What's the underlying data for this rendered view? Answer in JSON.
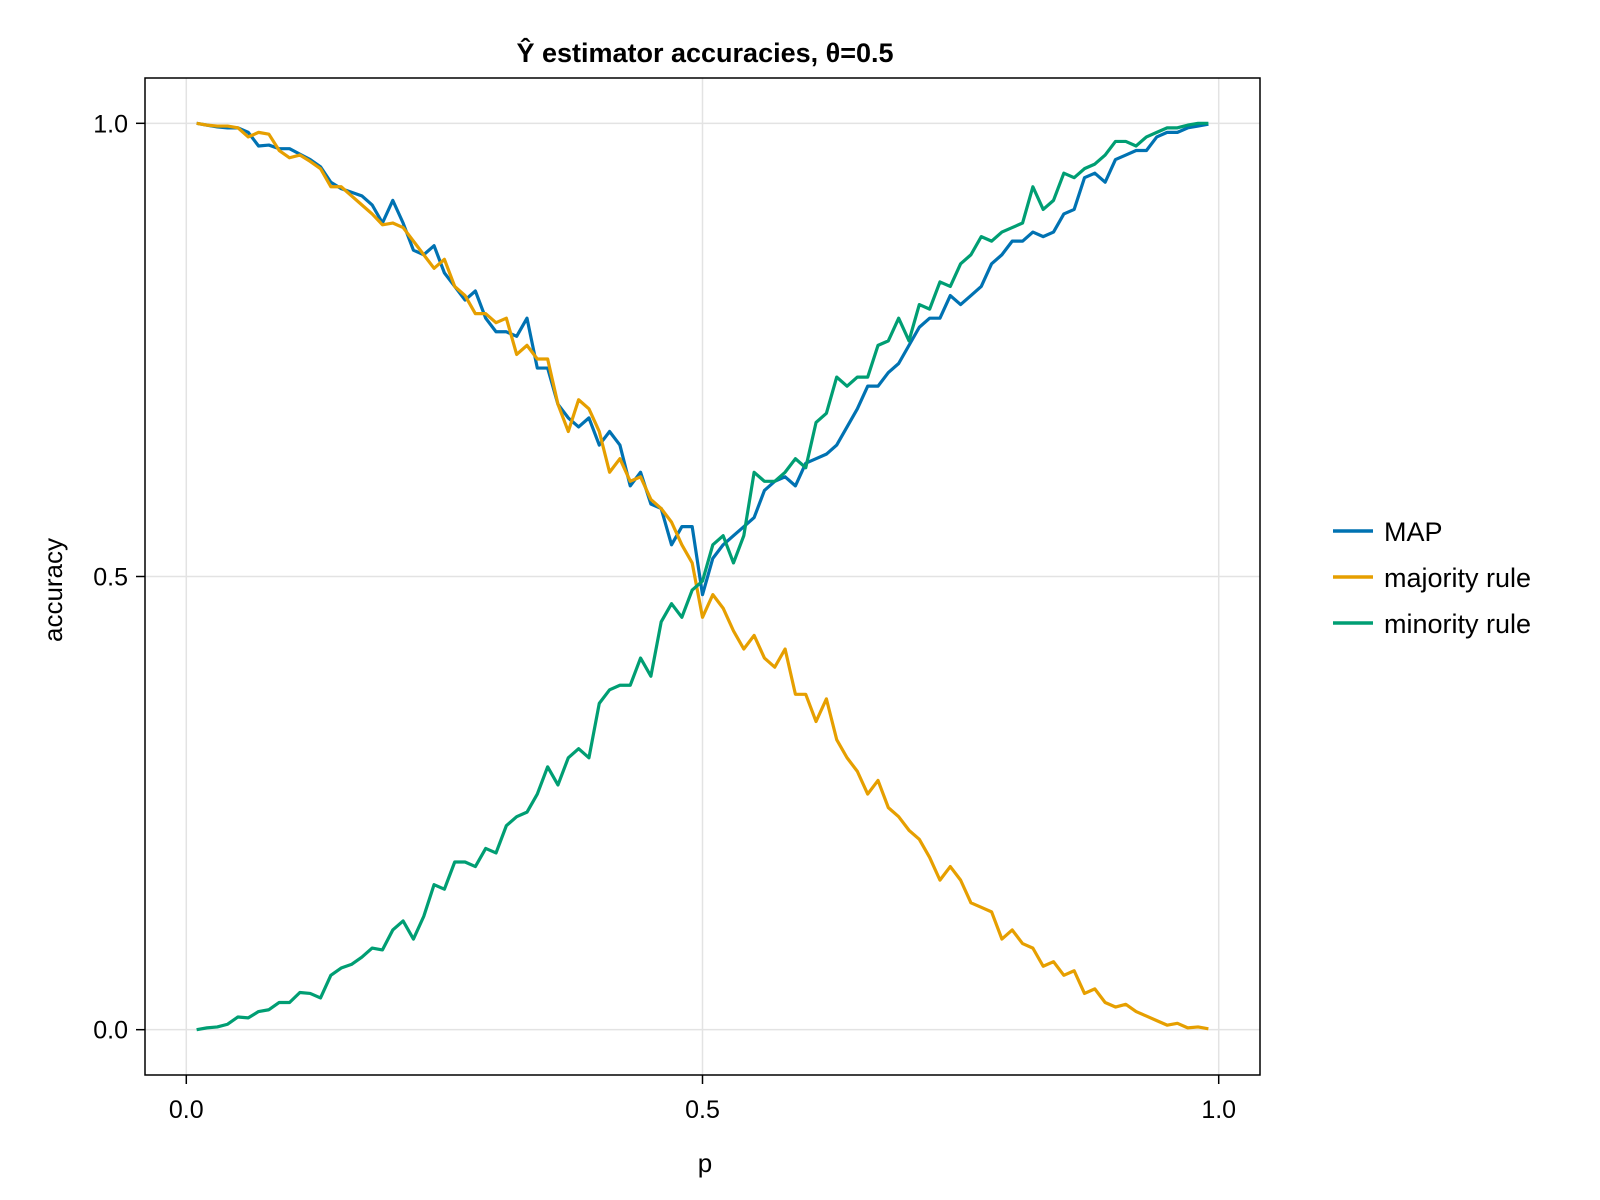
{
  "chart_data": {
    "type": "line",
    "title": "Ŷ estimator accuracies, θ=0.5",
    "xlabel": "p",
    "ylabel": "accuracy",
    "xlim": [
      -0.04,
      1.04
    ],
    "ylim": [
      -0.05,
      1.05
    ],
    "xticks": [
      0.0,
      0.5,
      1.0
    ],
    "xtick_labels": [
      "0.0",
      "0.5",
      "1.0"
    ],
    "yticks": [
      0.0,
      0.5,
      1.0
    ],
    "ytick_labels": [
      "0.0",
      "0.5",
      "1.0"
    ],
    "grid": true,
    "legend_position": "right",
    "x": [
      0.01,
      0.02,
      0.03,
      0.04,
      0.05,
      0.06,
      0.07,
      0.08,
      0.09,
      0.1,
      0.11,
      0.12,
      0.13,
      0.14,
      0.15,
      0.16,
      0.17,
      0.18,
      0.19,
      0.2,
      0.21,
      0.22,
      0.23,
      0.24,
      0.25,
      0.26,
      0.27,
      0.28,
      0.29,
      0.3,
      0.31,
      0.32,
      0.33,
      0.34,
      0.35,
      0.36,
      0.37,
      0.38,
      0.39,
      0.4,
      0.41,
      0.42,
      0.43,
      0.44,
      0.45,
      0.46,
      0.47,
      0.48,
      0.49,
      0.5,
      0.51,
      0.52,
      0.53,
      0.54,
      0.55,
      0.56,
      0.57,
      0.58,
      0.59,
      0.6,
      0.61,
      0.62,
      0.63,
      0.64,
      0.65,
      0.66,
      0.67,
      0.68,
      0.69,
      0.7,
      0.71,
      0.72,
      0.73,
      0.74,
      0.75,
      0.76,
      0.77,
      0.78,
      0.79,
      0.8,
      0.81,
      0.82,
      0.83,
      0.84,
      0.85,
      0.86,
      0.87,
      0.88,
      0.89,
      0.9,
      0.91,
      0.92,
      0.93,
      0.94,
      0.95,
      0.96,
      0.97,
      0.98,
      0.99
    ],
    "series": [
      {
        "name": "MAP",
        "color": "#0072b2",
        "values": [
          1.0,
          0.998,
          0.996,
          0.995,
          0.995,
          0.99,
          0.975,
          0.976,
          0.972,
          0.972,
          0.966,
          0.96,
          0.952,
          0.935,
          0.928,
          0.924,
          0.92,
          0.91,
          0.89,
          0.915,
          0.89,
          0.86,
          0.855,
          0.865,
          0.835,
          0.82,
          0.805,
          0.815,
          0.785,
          0.77,
          0.77,
          0.765,
          0.785,
          0.73,
          0.73,
          0.69,
          0.675,
          0.665,
          0.675,
          0.645,
          0.66,
          0.645,
          0.6,
          0.615,
          0.58,
          0.575,
          0.535,
          0.555,
          0.555,
          0.48,
          0.52,
          0.535,
          0.545,
          0.555,
          0.565,
          0.595,
          0.605,
          0.61,
          0.6,
          0.625,
          0.63,
          0.635,
          0.645,
          0.665,
          0.685,
          0.71,
          0.71,
          0.725,
          0.735,
          0.755,
          0.775,
          0.785,
          0.785,
          0.81,
          0.8,
          0.81,
          0.82,
          0.845,
          0.855,
          0.87,
          0.87,
          0.88,
          0.875,
          0.88,
          0.9,
          0.905,
          0.94,
          0.945,
          0.935,
          0.96,
          0.965,
          0.97,
          0.97,
          0.985,
          0.99,
          0.99,
          0.995,
          0.997,
          0.999
        ]
      },
      {
        "name": "majority rule",
        "color": "#e69f00",
        "values": [
          1.0,
          0.998,
          0.997,
          0.997,
          0.995,
          0.985,
          0.99,
          0.988,
          0.97,
          0.962,
          0.965,
          0.958,
          0.95,
          0.93,
          0.93,
          0.92,
          0.91,
          0.9,
          0.888,
          0.89,
          0.885,
          0.87,
          0.855,
          0.84,
          0.85,
          0.82,
          0.81,
          0.79,
          0.79,
          0.78,
          0.785,
          0.745,
          0.755,
          0.74,
          0.74,
          0.69,
          0.66,
          0.695,
          0.685,
          0.66,
          0.615,
          0.63,
          0.605,
          0.61,
          0.585,
          0.575,
          0.56,
          0.535,
          0.515,
          0.455,
          0.48,
          0.465,
          0.44,
          0.42,
          0.435,
          0.41,
          0.4,
          0.42,
          0.37,
          0.37,
          0.34,
          0.365,
          0.32,
          0.3,
          0.285,
          0.26,
          0.275,
          0.245,
          0.235,
          0.22,
          0.21,
          0.19,
          0.165,
          0.18,
          0.165,
          0.14,
          0.135,
          0.13,
          0.1,
          0.11,
          0.095,
          0.09,
          0.07,
          0.075,
          0.06,
          0.065,
          0.04,
          0.045,
          0.03,
          0.025,
          0.028,
          0.02,
          0.015,
          0.01,
          0.005,
          0.007,
          0.002,
          0.003,
          0.001
        ]
      },
      {
        "name": "minority rule",
        "color": "#009e73",
        "values": [
          0.0,
          0.002,
          0.003,
          0.006,
          0.014,
          0.013,
          0.02,
          0.022,
          0.03,
          0.03,
          0.041,
          0.04,
          0.035,
          0.06,
          0.068,
          0.072,
          0.08,
          0.09,
          0.088,
          0.11,
          0.12,
          0.1,
          0.125,
          0.16,
          0.155,
          0.185,
          0.185,
          0.18,
          0.2,
          0.195,
          0.225,
          0.235,
          0.24,
          0.26,
          0.29,
          0.27,
          0.3,
          0.31,
          0.3,
          0.36,
          0.375,
          0.38,
          0.38,
          0.41,
          0.39,
          0.45,
          0.47,
          0.455,
          0.485,
          0.495,
          0.535,
          0.545,
          0.515,
          0.545,
          0.615,
          0.605,
          0.605,
          0.615,
          0.63,
          0.62,
          0.67,
          0.68,
          0.72,
          0.71,
          0.72,
          0.72,
          0.755,
          0.76,
          0.785,
          0.76,
          0.8,
          0.795,
          0.825,
          0.82,
          0.845,
          0.855,
          0.875,
          0.87,
          0.88,
          0.885,
          0.89,
          0.93,
          0.905,
          0.915,
          0.945,
          0.94,
          0.95,
          0.955,
          0.965,
          0.98,
          0.98,
          0.975,
          0.985,
          0.99,
          0.995,
          0.995,
          0.998,
          1.0,
          1.0
        ]
      }
    ]
  }
}
